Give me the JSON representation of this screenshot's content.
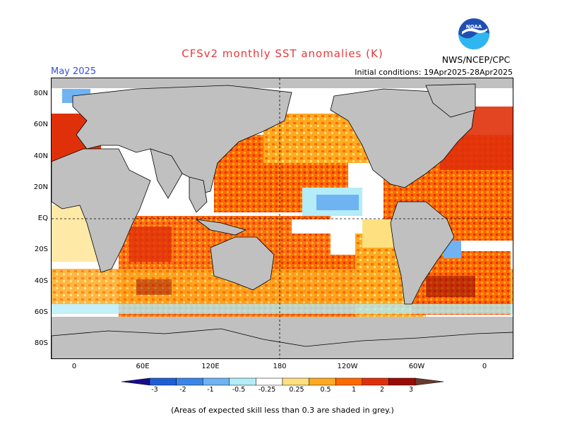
{
  "header": {
    "title": "CFSv2 monthly SST anomalies (K)",
    "month": "May 2025",
    "initial_conditions": "Initial conditions: 19Apr2025-28Apr2025",
    "agency": "NWS/NCEP/CPC",
    "logo_text": "NOAA"
  },
  "axes": {
    "lat_labels": [
      "80N",
      "60N",
      "40N",
      "20N",
      "EQ",
      "20S",
      "40S",
      "60S",
      "80S"
    ],
    "lon_labels": [
      "0",
      "60E",
      "120E",
      "180",
      "120W",
      "60W",
      "0"
    ]
  },
  "colorbar": {
    "labels": [
      "-3",
      "-2",
      "-1",
      "-0.5",
      "-0.25",
      "0.25",
      "0.5",
      "1",
      "2",
      "3"
    ],
    "colors": [
      "#1a0c8c",
      "#1f5fd6",
      "#3c85e8",
      "#6fb3f2",
      "#b4ecf7",
      "#ffffff",
      "#ffe080",
      "#ffaa20",
      "#ff6a00",
      "#e0300a",
      "#9a0c06",
      "#6a3a2e"
    ]
  },
  "palette": {
    "land": "#c0c0c0",
    "ocean_background": "#ffffff",
    "no_skill": "#c0c0c0",
    "title_color": "#e8383b",
    "month_color": "#3a4fd8"
  },
  "footnote": "(Areas of expected skill less than 0.3 are shaded in grey.)"
}
